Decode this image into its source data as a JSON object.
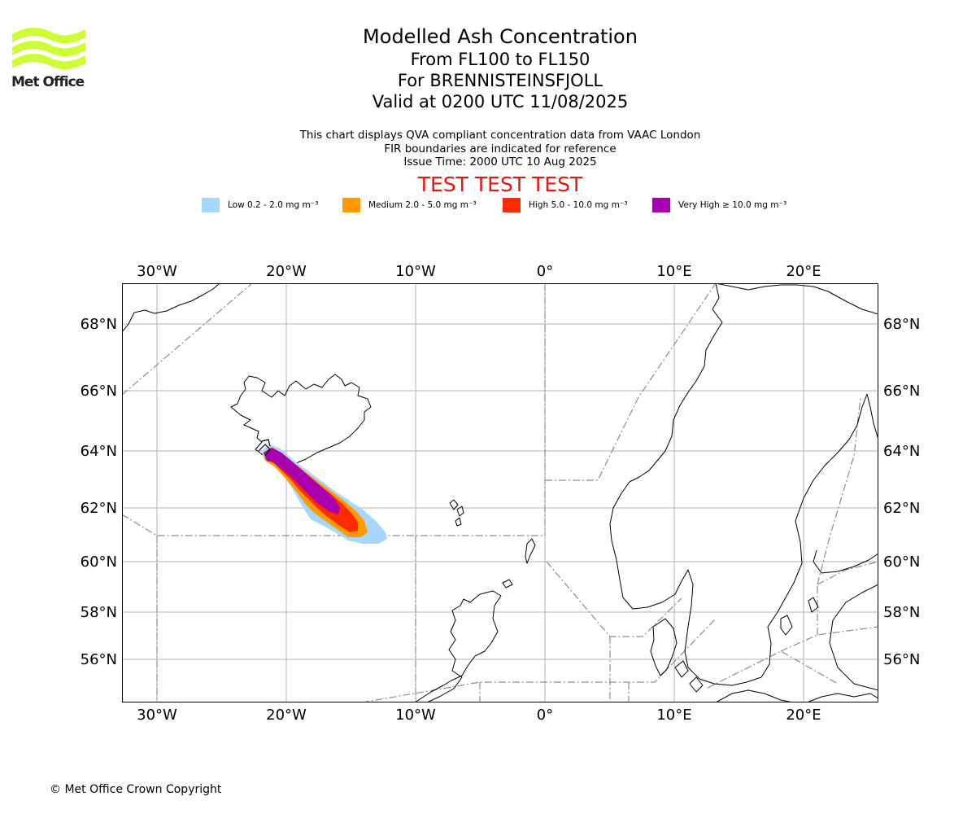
{
  "brand": {
    "name": "Met Office"
  },
  "header": {
    "title": "Modelled Ash Concentration",
    "levels": "From FL100 to FL150",
    "volcano": "For BRENNISTEINSFJOLL",
    "valid": "Valid at 0200 UTC 11/08/2025",
    "note1": "This chart displays QVA compliant concentration data from VAAC London",
    "note2": "FIR boundaries are indicated for reference",
    "issue": "Issue Time: 2000 UTC 10 Aug 2025",
    "test_banner": "TEST TEST TEST"
  },
  "legend": [
    {
      "label": "Low 0.2 - 2.0 mg m⁻³",
      "color": "#a6d8ff"
    },
    {
      "label": "Medium 2.0 - 5.0 mg m⁻³",
      "color": "#ff9a00"
    },
    {
      "label": "High 5.0 - 10.0 mg m⁻³",
      "color": "#ff2a00"
    },
    {
      "label": "Very High ≥ 10.0 mg m⁻³",
      "color": "#a800b0"
    }
  ],
  "map": {
    "lon_range": [
      -32.7,
      25.6
    ],
    "lat_range": [
      54.4,
      69.5
    ],
    "lon_labels": [
      "30°W",
      "20°W",
      "10°W",
      "0°",
      "10°E",
      "20°E"
    ],
    "lat_labels": [
      "68°N",
      "66°N",
      "64°N",
      "62°N",
      "60°N",
      "58°N",
      "56°N"
    ],
    "colors": {
      "grid": "#b0b0b0",
      "fir": "#8c8c8c",
      "coast": "#000000"
    }
  },
  "footer": {
    "copyright": "© Met Office Crown Copyright"
  }
}
